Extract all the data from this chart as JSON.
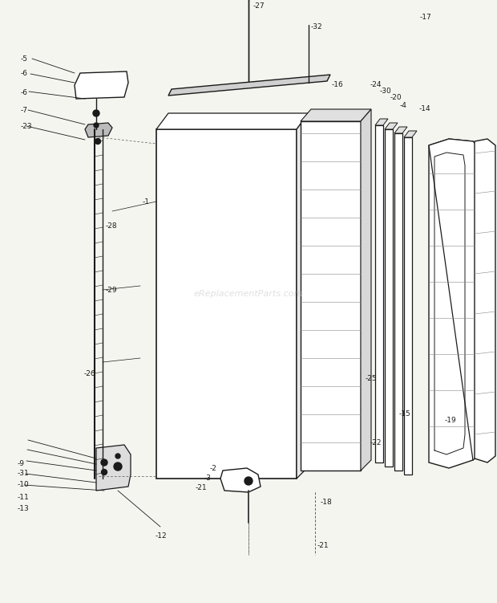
{
  "bg_color": "#f5f5f0",
  "line_color": "#1a1a1a",
  "watermark": "eReplacementParts.com",
  "fig_w": 6.2,
  "fig_h": 7.51,
  "dpi": 100
}
